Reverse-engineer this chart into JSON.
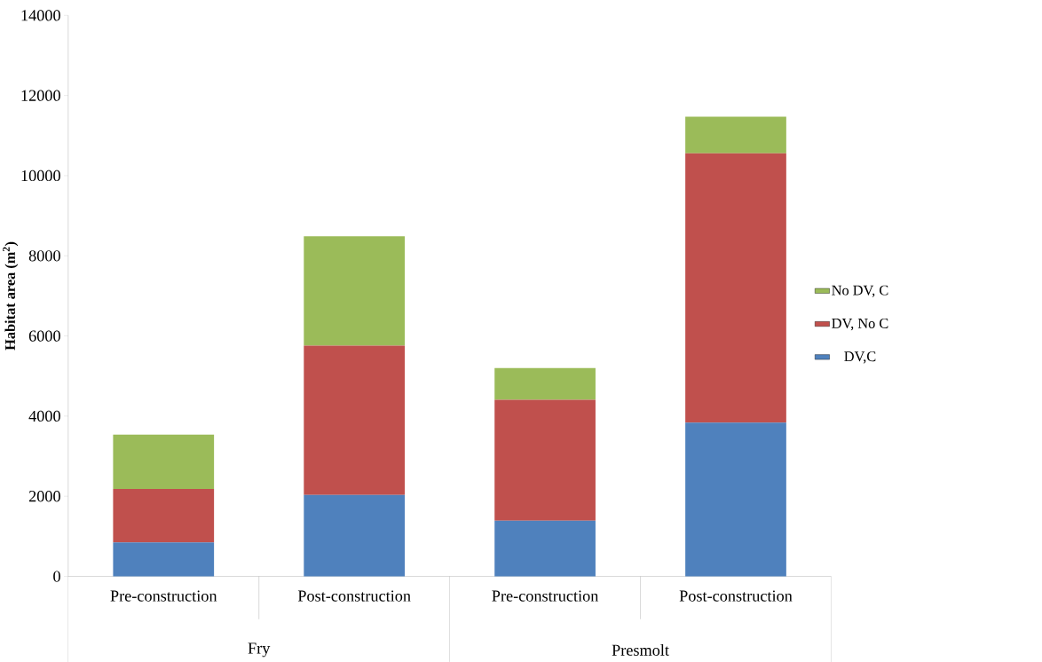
{
  "chart_data": {
    "type": "bar",
    "stacked": true,
    "ylabel": "Habitat area (m$^{2}$)",
    "categories": [
      "Pre-construction",
      "Post-construction",
      "Pre-construction",
      "Post-construction"
    ],
    "annotations": [
      "Fry",
      "Presmolt"
    ],
    "series": [
      {
        "name": "DV,C",
        "color": "#4f81bd",
        "values": [
          850,
          2030,
          1390,
          3840
        ]
      },
      {
        "name": "DV, No C",
        "color": "#c0504d",
        "values": [
          1330,
          3730,
          3020,
          6720
        ]
      },
      {
        "name": "No DV, C",
        "color": "#9bbb59",
        "values": [
          1360,
          2730,
          790,
          910
        ]
      }
    ],
    "ylim": [
      0,
      14000
    ],
    "yticks": [
      0,
      2000,
      4000,
      6000,
      8000,
      10000,
      12000,
      14000
    ],
    "legend": "right",
    "grid": false
  }
}
